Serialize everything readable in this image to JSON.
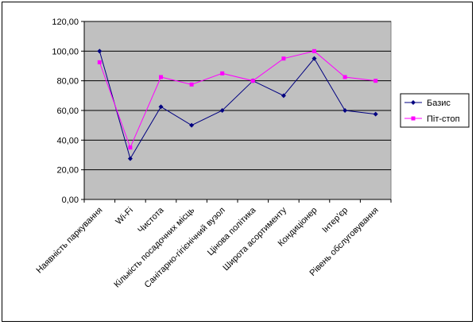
{
  "chart_data": {
    "type": "line",
    "categories": [
      "Наявність паркування",
      "Wi-Fi",
      "Чистота",
      "Кількість посадочних місць",
      "Санітарно-гігієнічний вузол",
      "Цінова політика",
      "Широта асортименту",
      "Кондиціонер",
      "Інтер'єр",
      "Рівень обслуговування"
    ],
    "series": [
      {
        "name": "Базис",
        "values": [
          100,
          27.5,
          62.5,
          50,
          60,
          80,
          70,
          95,
          60,
          57.5
        ],
        "color": "#000080",
        "marker": "diamond"
      },
      {
        "name": "Піт-стоп",
        "values": [
          92.5,
          35,
          82.5,
          77.5,
          85,
          80,
          95,
          100,
          82.5,
          80
        ],
        "color": "#ff00ff",
        "marker": "square"
      }
    ],
    "ylim": [
      0,
      120
    ],
    "yticks": [
      "0,00",
      "20,00",
      "40,00",
      "60,00",
      "80,00",
      "100,00",
      "120,00"
    ],
    "plot_background": "#c0c0c0",
    "grid": true,
    "legend_position": "right"
  }
}
